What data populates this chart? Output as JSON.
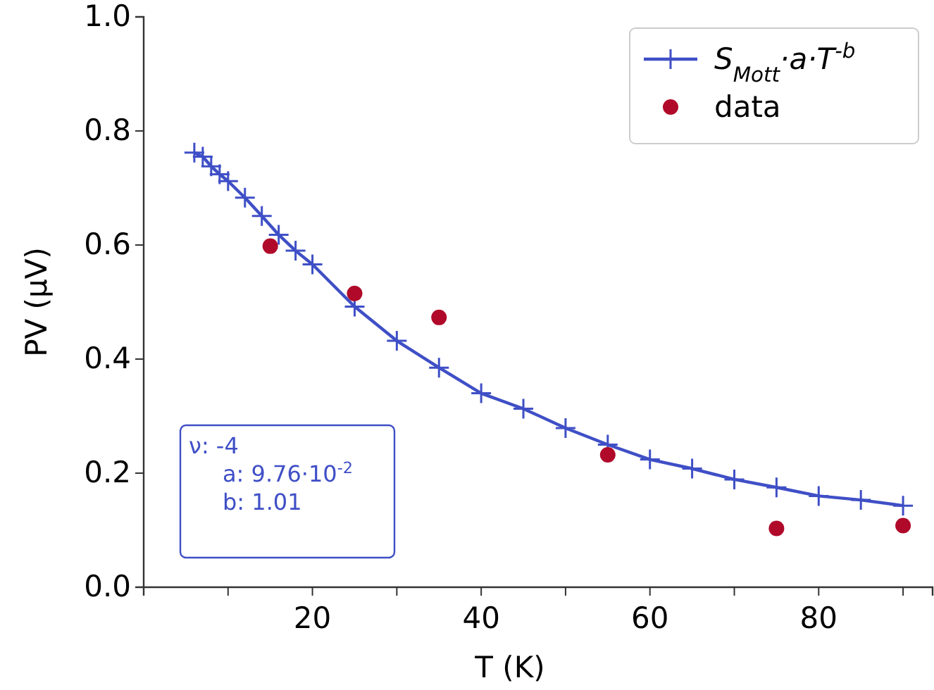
{
  "chart_data": {
    "type": "line",
    "xlabel": "T (K)",
    "ylabel": "PV (μV)",
    "xlim": [
      0,
      93.5
    ],
    "ylim": [
      0,
      1.0
    ],
    "xticks": [
      {
        "value": 10,
        "label": null
      },
      20,
      {
        "value": 30,
        "label": null
      },
      40,
      {
        "value": 50,
        "label": null
      },
      60,
      {
        "value": 70,
        "label": null
      },
      80,
      {
        "value": 90,
        "label": null
      }
    ],
    "yticks": [
      {
        "value": 0,
        "label": "0.0"
      },
      0.2,
      0.4,
      0.6,
      0.8,
      {
        "value": 1.0,
        "label": "1.0"
      }
    ],
    "legend": "top right",
    "grid": false,
    "annotations": [
      "ν: -4",
      "a: 9.76·10$^{-2}$",
      "b: 1.01"
    ],
    "series": [
      {
        "name": "S$_{Mott}$·a·T$^{-b}$",
        "color": "#3f4fc6",
        "marker": "cross",
        "line_style": "solid",
        "x": [
          6,
          7,
          8,
          9,
          10,
          12,
          14,
          16,
          18,
          20,
          25,
          30,
          35,
          40,
          45,
          50,
          55,
          60,
          65,
          70,
          75,
          80,
          85,
          90
        ],
        "values": [
          0.762,
          0.755,
          0.738,
          0.724,
          0.712,
          0.683,
          0.651,
          0.618,
          0.59,
          0.566,
          0.492,
          0.432,
          0.385,
          0.34,
          0.313,
          0.279,
          0.25,
          0.224,
          0.208,
          0.189,
          0.175,
          0.16,
          0.153,
          0.143
        ]
      },
      {
        "name": "data",
        "type": "scatter",
        "color": "#b0092a",
        "marker": "circle",
        "x": [
          15,
          25,
          35,
          55,
          75,
          90
        ],
        "values": [
          0.598,
          0.515,
          0.473,
          0.232,
          0.103,
          0.108
        ]
      }
    ]
  }
}
